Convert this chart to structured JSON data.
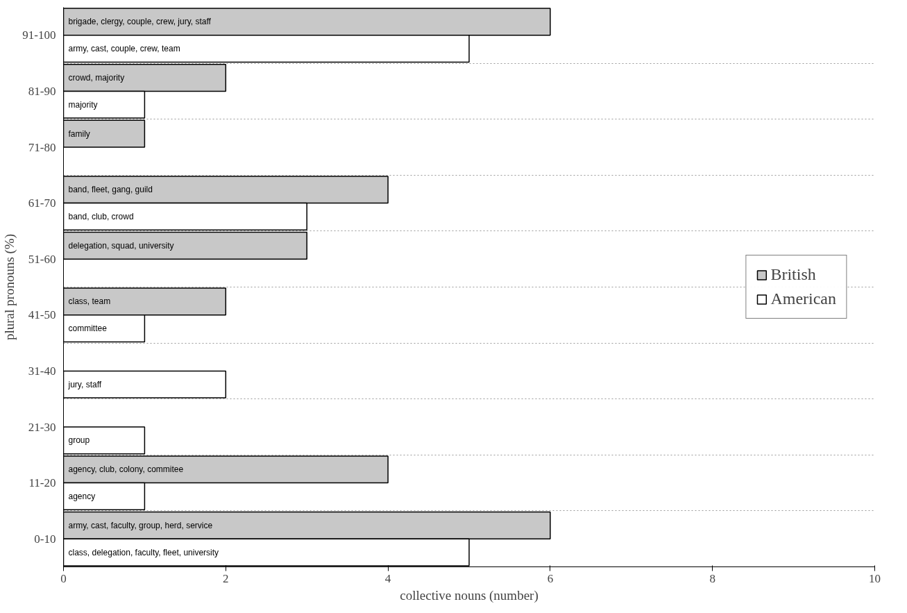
{
  "chart_data": {
    "type": "bar",
    "orientation": "horizontal",
    "xlabel": "collective nouns (number)",
    "ylabel": "plural pronouns (%)",
    "categories": [
      "91-100",
      "81-90",
      "71-80",
      "61-70",
      "51-60",
      "41-50",
      "31-40",
      "21-30",
      "11-20",
      "0-10"
    ],
    "series": [
      {
        "name": "British",
        "color": "#c8c8c8",
        "values": [
          6,
          2,
          1,
          4,
          3,
          2,
          null,
          null,
          4,
          6
        ],
        "value_labels": [
          "brigade, clergy, couple, crew, jury, staff",
          "crowd, majority",
          "family",
          "band, fleet, gang, guild",
          "delegation, squad, university",
          "class, team",
          null,
          null,
          "agency, club, colony, commitee",
          "army, cast, faculty, group, herd, service"
        ]
      },
      {
        "name": "American",
        "color": "#ffffff",
        "values": [
          5,
          1,
          null,
          3,
          null,
          1,
          2,
          1,
          1,
          5
        ],
        "value_labels": [
          "army, cast, couple, crew, team",
          "majority",
          null,
          "band, club, crowd",
          null,
          "committee",
          "jury, staff",
          "group",
          "agency",
          "class, delegation, faculty, fleet, university"
        ]
      }
    ],
    "xlim": [
      0,
      10
    ],
    "xticks": [
      0,
      2,
      4,
      6,
      8,
      10
    ],
    "grid": "y",
    "legend": "right"
  }
}
